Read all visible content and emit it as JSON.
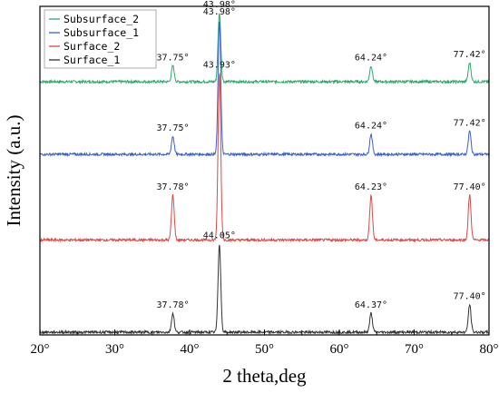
{
  "chart_data": {
    "type": "line",
    "xlabel": "2 theta,deg",
    "ylabel": "Intensity (a.u.)",
    "xlim": [
      20,
      80
    ],
    "x_ticks": [
      "20°",
      "30°",
      "40°",
      "50°",
      "60°",
      "70°",
      "80°"
    ],
    "grid": false,
    "legend_position": "top-left",
    "peaks_x": [
      37.76,
      43.98,
      64.24,
      77.41
    ],
    "series": [
      {
        "name": "Subsurface_2",
        "color": "#2ca86b",
        "baseline": 3.0,
        "peak_heights": [
          0.22,
          0.95,
          0.22,
          0.26
        ],
        "peak_labels": [
          "37.75°",
          "43.98°",
          "64.24°",
          "77.42°"
        ]
      },
      {
        "name": "Subsurface_1",
        "color": "#3a5fcd",
        "baseline": 2.0,
        "peak_heights": [
          0.25,
          1.85,
          0.28,
          0.32
        ],
        "peak_labels": [
          "37.75°",
          "43.98°",
          "64.24°",
          "77.42°"
        ]
      },
      {
        "name": "Surface_2",
        "color": "#d94a4a",
        "baseline": 0.82,
        "peak_heights": [
          0.62,
          2.3,
          0.62,
          0.62
        ],
        "peak_labels": [
          "37.78°",
          "43.93°",
          "64.23°",
          "77.40°"
        ]
      },
      {
        "name": "Surface_1",
        "color": "#333333",
        "baseline": -0.45,
        "peak_heights": [
          0.26,
          1.22,
          0.26,
          0.38
        ],
        "peak_labels": [
          "37.78°",
          "44.05°",
          "64.37°",
          "77.40°"
        ]
      }
    ]
  }
}
